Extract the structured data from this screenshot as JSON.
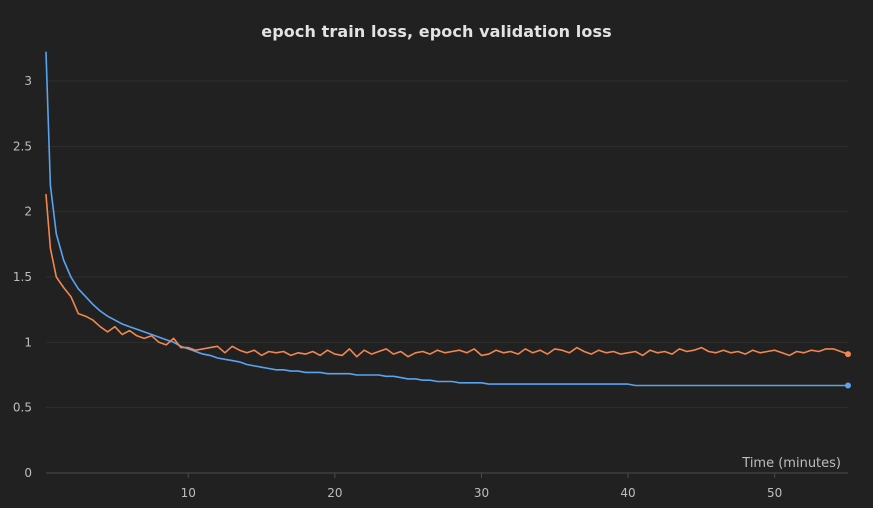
{
  "colors": {
    "background": "#212121",
    "grid": "#2f2f2f",
    "axis": "#4a4a4a",
    "tick_text": "#bdbdbd",
    "title_text": "#e3e3e3",
    "train": "#5aa3ef",
    "validation": "#f0874f"
  },
  "chart_data": {
    "type": "line",
    "title": "epoch train loss, epoch validation loss",
    "xlabel": "Time (minutes)",
    "ylabel": "",
    "xlim": [
      0.3,
      55
    ],
    "ylim": [
      0,
      3.3
    ],
    "xticks": [
      10,
      20,
      30,
      40,
      50
    ],
    "yticks": [
      0,
      0.5,
      1,
      1.5,
      2,
      2.5,
      3
    ],
    "ytick_labels": [
      "0",
      "0.5",
      "1",
      "1.5",
      "2",
      "2.5",
      "3"
    ],
    "grid": true,
    "legend": "none",
    "series": [
      {
        "key": "train",
        "color": "#5aa3ef",
        "x": [
          0.3,
          0.6,
          1.0,
          1.5,
          2.0,
          2.5,
          3.0,
          3.5,
          4.0,
          4.5,
          5.0,
          5.5,
          6.0,
          6.5,
          7.0,
          7.5,
          8.0,
          8.5,
          9.0,
          9.5,
          10.0,
          10.5,
          11.0,
          11.5,
          12.0,
          12.5,
          13.0,
          13.5,
          14.0,
          14.5,
          15.0,
          15.5,
          16.0,
          16.5,
          17.0,
          17.5,
          18.0,
          18.5,
          19.0,
          19.5,
          20.0,
          20.5,
          21.0,
          21.5,
          22.0,
          22.5,
          23.0,
          23.5,
          24.0,
          24.5,
          25.0,
          25.5,
          26.0,
          26.5,
          27.0,
          27.5,
          28.0,
          28.5,
          29.0,
          29.5,
          30.0,
          30.5,
          31.0,
          31.5,
          32.0,
          32.5,
          33.0,
          33.5,
          34.0,
          34.5,
          35.0,
          35.5,
          36.0,
          36.5,
          37.0,
          37.5,
          38.0,
          38.5,
          39.0,
          39.5,
          40.0,
          40.5,
          41.0,
          41.5,
          42.0,
          42.5,
          43.0,
          43.5,
          44.0,
          44.5,
          45.0,
          45.5,
          46.0,
          46.5,
          47.0,
          47.5,
          48.0,
          48.5,
          49.0,
          49.5,
          50.0,
          50.5,
          51.0,
          51.5,
          52.0,
          52.5,
          53.0,
          53.5,
          54.0,
          54.5,
          55.0
        ],
        "y": [
          3.22,
          2.2,
          1.83,
          1.63,
          1.5,
          1.41,
          1.35,
          1.29,
          1.24,
          1.2,
          1.17,
          1.14,
          1.12,
          1.1,
          1.08,
          1.06,
          1.04,
          1.02,
          1.0,
          0.97,
          0.95,
          0.93,
          0.91,
          0.9,
          0.88,
          0.87,
          0.86,
          0.85,
          0.83,
          0.82,
          0.81,
          0.8,
          0.79,
          0.79,
          0.78,
          0.78,
          0.77,
          0.77,
          0.77,
          0.76,
          0.76,
          0.76,
          0.76,
          0.75,
          0.75,
          0.75,
          0.75,
          0.74,
          0.74,
          0.73,
          0.72,
          0.72,
          0.71,
          0.71,
          0.7,
          0.7,
          0.7,
          0.69,
          0.69,
          0.69,
          0.69,
          0.68,
          0.68,
          0.68,
          0.68,
          0.68,
          0.68,
          0.68,
          0.68,
          0.68,
          0.68,
          0.68,
          0.68,
          0.68,
          0.68,
          0.68,
          0.68,
          0.68,
          0.68,
          0.68,
          0.68,
          0.67,
          0.67,
          0.67,
          0.67,
          0.67,
          0.67,
          0.67,
          0.67,
          0.67,
          0.67,
          0.67,
          0.67,
          0.67,
          0.67,
          0.67,
          0.67,
          0.67,
          0.67,
          0.67,
          0.67,
          0.67,
          0.67,
          0.67,
          0.67,
          0.67,
          0.67,
          0.67,
          0.67,
          0.67,
          0.67
        ]
      },
      {
        "key": "validation",
        "color": "#f0874f",
        "x": [
          0.3,
          0.6,
          1.0,
          1.5,
          2.0,
          2.5,
          3.0,
          3.5,
          4.0,
          4.5,
          5.0,
          5.5,
          6.0,
          6.5,
          7.0,
          7.5,
          8.0,
          8.5,
          9.0,
          9.5,
          10.0,
          10.5,
          11.0,
          11.5,
          12.0,
          12.5,
          13.0,
          13.5,
          14.0,
          14.5,
          15.0,
          15.5,
          16.0,
          16.5,
          17.0,
          17.5,
          18.0,
          18.5,
          19.0,
          19.5,
          20.0,
          20.5,
          21.0,
          21.5,
          22.0,
          22.5,
          23.0,
          23.5,
          24.0,
          24.5,
          25.0,
          25.5,
          26.0,
          26.5,
          27.0,
          27.5,
          28.0,
          28.5,
          29.0,
          29.5,
          30.0,
          30.5,
          31.0,
          31.5,
          32.0,
          32.5,
          33.0,
          33.5,
          34.0,
          34.5,
          35.0,
          35.5,
          36.0,
          36.5,
          37.0,
          37.5,
          38.0,
          38.5,
          39.0,
          39.5,
          40.0,
          40.5,
          41.0,
          41.5,
          42.0,
          42.5,
          43.0,
          43.5,
          44.0,
          44.5,
          45.0,
          45.5,
          46.0,
          46.5,
          47.0,
          47.5,
          48.0,
          48.5,
          49.0,
          49.5,
          50.0,
          50.5,
          51.0,
          51.5,
          52.0,
          52.5,
          53.0,
          53.5,
          54.0,
          54.5,
          55.0
        ],
        "y": [
          2.13,
          1.72,
          1.5,
          1.42,
          1.35,
          1.22,
          1.2,
          1.17,
          1.12,
          1.08,
          1.12,
          1.06,
          1.09,
          1.05,
          1.03,
          1.05,
          1.0,
          0.98,
          1.03,
          0.96,
          0.96,
          0.94,
          0.95,
          0.96,
          0.97,
          0.92,
          0.97,
          0.94,
          0.92,
          0.94,
          0.9,
          0.93,
          0.92,
          0.93,
          0.9,
          0.92,
          0.91,
          0.93,
          0.9,
          0.94,
          0.91,
          0.9,
          0.95,
          0.89,
          0.94,
          0.91,
          0.93,
          0.95,
          0.91,
          0.93,
          0.89,
          0.92,
          0.93,
          0.91,
          0.94,
          0.92,
          0.93,
          0.94,
          0.92,
          0.95,
          0.9,
          0.91,
          0.94,
          0.92,
          0.93,
          0.91,
          0.95,
          0.92,
          0.94,
          0.91,
          0.95,
          0.94,
          0.92,
          0.96,
          0.93,
          0.91,
          0.94,
          0.92,
          0.93,
          0.91,
          0.92,
          0.93,
          0.9,
          0.94,
          0.92,
          0.93,
          0.91,
          0.95,
          0.93,
          0.94,
          0.96,
          0.93,
          0.92,
          0.94,
          0.92,
          0.93,
          0.91,
          0.94,
          0.92,
          0.93,
          0.94,
          0.92,
          0.9,
          0.93,
          0.92,
          0.94,
          0.93,
          0.95,
          0.95,
          0.93,
          0.91
        ]
      }
    ]
  }
}
